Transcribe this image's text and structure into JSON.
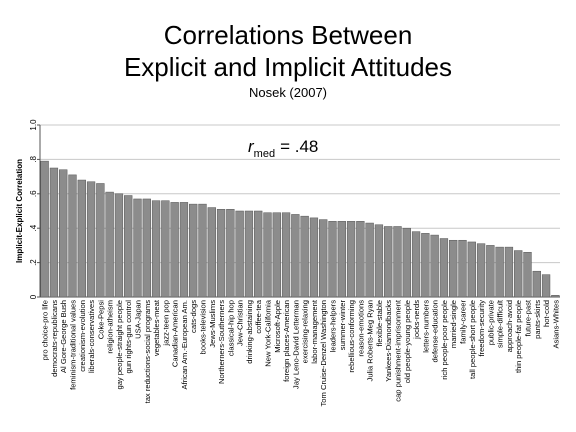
{
  "chart_data": {
    "type": "bar",
    "title": [
      "Correlations Between",
      "Explicit and Implicit Attitudes"
    ],
    "subtitle": "Nosek (2007)",
    "y_label": "Implicit-Explicit Correlation",
    "annotation": {
      "symbol": "r",
      "subscript": "med",
      "text": "= .48"
    },
    "categories": [
      "pro choice-pro life",
      "democrats-republicans",
      "Al Gore-George Bush",
      "feminism-traditional values",
      "creationism-evolution",
      "liberals-conservatives",
      "Coke-Pepsi",
      "religion-atheism",
      "gay people-straight people",
      "gun rights-gun control",
      "USA-Japan",
      "tax reductions-social programs",
      "vegetables-meat",
      "jazz-teen pop",
      "Canadian-American",
      "African Am.-European Am.",
      "cats-dogs",
      "books-television",
      "Jews-Muslims",
      "Northerners-Southerners",
      "classical-hip hop",
      "Jew-Christian",
      "drinking-abstaining",
      "coffee-tea",
      "New York-California",
      "Microsoft-Apple",
      "foreign places-American",
      "Jay Leno-David Letterman",
      "exercising-relaxing",
      "labor-management",
      "Tom Cruise-Denzel Washington",
      "leaders-helpers",
      "summer-winter",
      "rebellious-conforming",
      "reason-emotions",
      "Julia Roberts-Meg Ryan",
      "flexible-stable",
      "Yankees-Diamondbacks",
      "cap punishment-imprisonment",
      "old people-young people",
      "jocks-nerds",
      "letters-numbers",
      "defense-education",
      "rich people-poor people",
      "married-single",
      "family-career",
      "tall people-short people",
      "freedom-security",
      "public-private",
      "simple-difficult",
      "approach-avoid",
      "thin people-fat people",
      "future-past",
      "pants-skirts",
      "hot-cold",
      "Asians-Whites"
    ],
    "values": [
      0.79,
      0.75,
      0.74,
      0.71,
      0.68,
      0.67,
      0.66,
      0.61,
      0.6,
      0.59,
      0.57,
      0.57,
      0.56,
      0.56,
      0.55,
      0.55,
      0.54,
      0.54,
      0.52,
      0.51,
      0.51,
      0.5,
      0.5,
      0.5,
      0.49,
      0.49,
      0.49,
      0.48,
      0.47,
      0.46,
      0.45,
      0.44,
      0.44,
      0.44,
      0.44,
      0.43,
      0.42,
      0.41,
      0.41,
      0.4,
      0.38,
      0.37,
      0.36,
      0.34,
      0.33,
      0.33,
      0.32,
      0.31,
      0.3,
      0.29,
      0.29,
      0.27,
      0.26,
      0.15,
      0.13,
      0.01
    ],
    "color": "#8c8c8c",
    "ylim": [
      0,
      1
    ],
    "yticks": [
      {
        "value": 0,
        "label": "0"
      },
      {
        "value": 0.2,
        "label": ".2"
      },
      {
        "value": 0.4,
        "label": ".4"
      },
      {
        "value": 0.6,
        "label": ".6"
      },
      {
        "value": 0.8,
        "label": ".8"
      },
      {
        "value": 1,
        "label": "1.0"
      }
    ],
    "grid": true
  }
}
